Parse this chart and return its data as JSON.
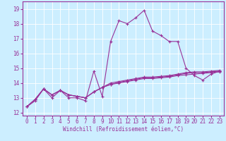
{
  "title": "",
  "xlabel": "Windchill (Refroidissement éolien,°C)",
  "bg_color": "#cceeff",
  "line_color": "#993399",
  "grid_color": "#ffffff",
  "xlim": [
    -0.5,
    23.5
  ],
  "ylim": [
    11.8,
    19.5
  ],
  "yticks": [
    12,
    13,
    14,
    15,
    16,
    17,
    18,
    19
  ],
  "xticks": [
    0,
    1,
    2,
    3,
    4,
    5,
    6,
    7,
    8,
    9,
    10,
    11,
    12,
    13,
    14,
    15,
    16,
    17,
    18,
    19,
    20,
    21,
    22,
    23
  ],
  "series": [
    [
      12.4,
      12.8,
      13.6,
      13.0,
      13.5,
      13.0,
      13.0,
      12.8,
      14.8,
      13.1,
      16.8,
      18.2,
      18.0,
      18.4,
      18.9,
      17.5,
      17.2,
      16.8,
      16.8,
      15.0,
      14.5,
      14.2,
      14.6,
      14.8
    ],
    [
      12.4,
      12.9,
      13.6,
      13.2,
      13.5,
      13.2,
      13.1,
      13.0,
      13.4,
      13.7,
      13.9,
      14.0,
      14.1,
      14.2,
      14.3,
      14.3,
      14.35,
      14.4,
      14.5,
      14.55,
      14.6,
      14.65,
      14.7,
      14.75
    ],
    [
      12.4,
      12.9,
      13.6,
      13.2,
      13.5,
      13.2,
      13.1,
      13.0,
      13.4,
      13.7,
      13.9,
      14.05,
      14.15,
      14.25,
      14.35,
      14.35,
      14.4,
      14.45,
      14.55,
      14.65,
      14.7,
      14.7,
      14.75,
      14.8
    ],
    [
      12.4,
      12.9,
      13.6,
      13.2,
      13.5,
      13.2,
      13.1,
      13.0,
      13.4,
      13.7,
      14.0,
      14.1,
      14.2,
      14.3,
      14.4,
      14.4,
      14.45,
      14.5,
      14.6,
      14.7,
      14.75,
      14.75,
      14.8,
      14.85
    ]
  ],
  "marker": "+",
  "markersize": 3,
  "linewidth": 0.8,
  "tick_labelsize": 5.5,
  "xlabel_fontsize": 5.5
}
